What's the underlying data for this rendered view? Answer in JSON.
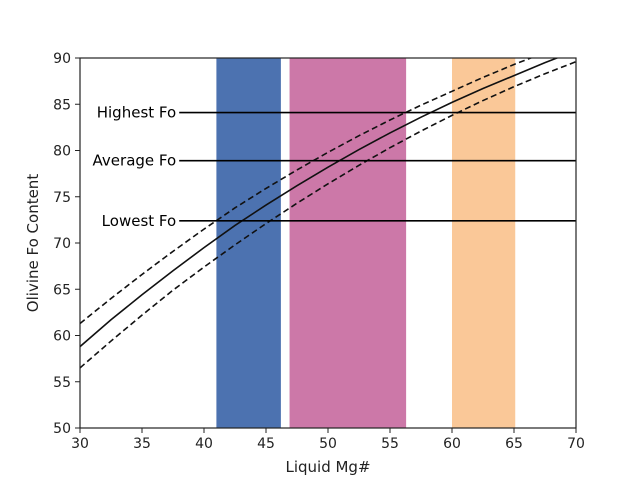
{
  "chart_data": {
    "type": "line",
    "title": "",
    "xlabel": "Liquid Mg#",
    "ylabel": "Olivine Fo Content",
    "xlim": [
      30,
      70
    ],
    "ylim": [
      50,
      90
    ],
    "xticks": [
      30,
      35,
      40,
      45,
      50,
      55,
      60,
      65,
      70
    ],
    "yticks": [
      50,
      55,
      60,
      65,
      70,
      75,
      80,
      85,
      90
    ],
    "grid": false,
    "legend": "none",
    "bands": [
      {
        "x0": 41.0,
        "x1": 46.2,
        "color": "#4c72b0"
      },
      {
        "x0": 46.9,
        "x1": 56.3,
        "color": "#cc78a8"
      },
      {
        "x0": 60.0,
        "x1": 65.1,
        "color": "#fac898"
      }
    ],
    "series": [
      {
        "style": "solid",
        "color": "#111111",
        "x": [
          30,
          32.5,
          35,
          37.5,
          40,
          42.5,
          45,
          47.5,
          50,
          52.5,
          55,
          57.5,
          60,
          62.5,
          65,
          67.5,
          70
        ],
        "y": [
          58.8,
          61.7,
          64.4,
          67.0,
          69.5,
          71.9,
          74.1,
          76.2,
          78.2,
          80.1,
          81.9,
          83.6,
          85.2,
          86.7,
          88.1,
          89.5,
          90.8
        ]
      },
      {
        "style": "dashed",
        "color": "#111111",
        "x": [
          30,
          32.5,
          35,
          37.5,
          40,
          42.5,
          45,
          47.5,
          50,
          52.5,
          55,
          57.5,
          60,
          62.5,
          65,
          67.5,
          70
        ],
        "y": [
          61.3,
          64.0,
          66.6,
          69.1,
          71.5,
          73.8,
          75.9,
          77.9,
          79.8,
          81.6,
          83.3,
          84.9,
          86.4,
          87.9,
          89.3,
          90.6,
          91.8
        ]
      },
      {
        "style": "dashed",
        "color": "#111111",
        "x": [
          30,
          32.5,
          35,
          37.5,
          40,
          42.5,
          45,
          47.5,
          50,
          52.5,
          55,
          57.5,
          60,
          62.5,
          65,
          67.5,
          70
        ],
        "y": [
          56.5,
          59.4,
          62.2,
          64.9,
          67.4,
          69.8,
          72.1,
          74.3,
          76.4,
          78.4,
          80.3,
          82.1,
          83.8,
          85.4,
          86.9,
          88.3,
          89.6
        ]
      }
    ],
    "reference_lines": [
      {
        "label": "Highest Fo",
        "y": 84.1,
        "x_start": 38
      },
      {
        "label": "Average Fo",
        "y": 78.9,
        "x_start": 38
      },
      {
        "label": "Lowest Fo",
        "y": 72.4,
        "x_start": 38
      }
    ]
  }
}
